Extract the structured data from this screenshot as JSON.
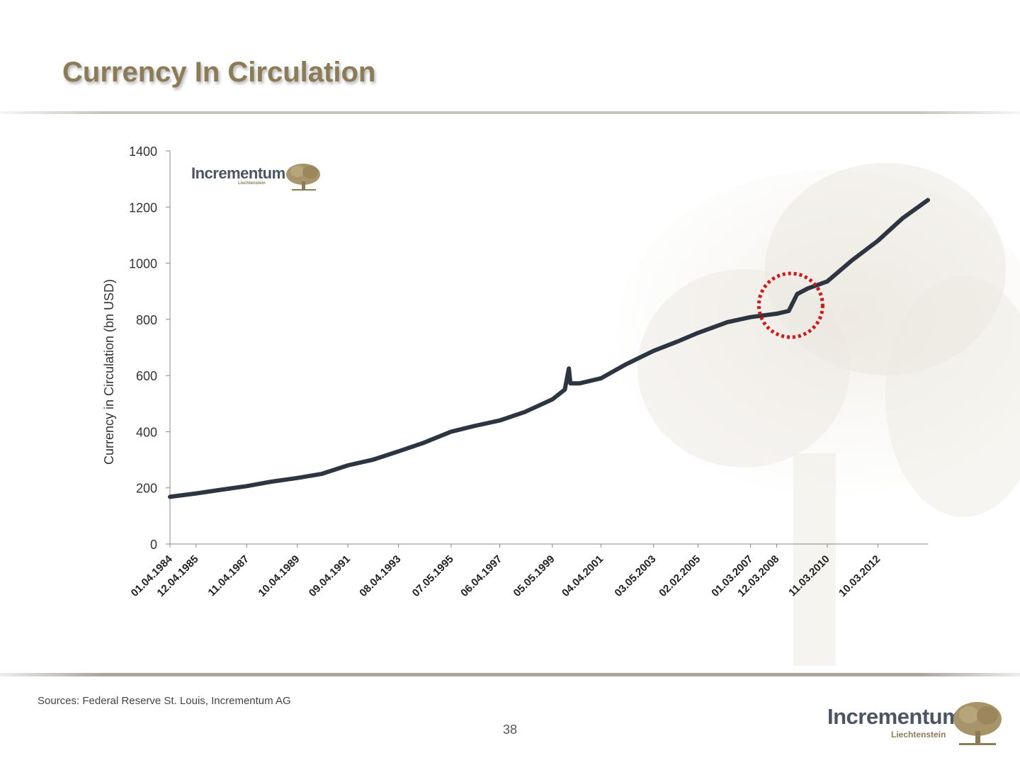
{
  "slide": {
    "title": "Currency In Circulation",
    "sources": "Sources: Federal Reserve St. Louis, Incrementum AG",
    "page_number": "38"
  },
  "brand": {
    "name": "Incrementum",
    "subtitle": "Liechtenstein",
    "icon": "tree-icon",
    "title_color": "#8b7b57",
    "logo_text_color": "#4b5563"
  },
  "chart_data": {
    "type": "line",
    "title": "",
    "xlabel": "",
    "ylabel": "Currency in Circulation (bn USD)",
    "ylim": [
      0,
      1400
    ],
    "yticks": [
      0,
      200,
      400,
      600,
      800,
      1000,
      1200,
      1400
    ],
    "xticks": [
      "01.04.1984",
      "12.04.1985",
      "11.04.1987",
      "10.04.1989",
      "09.04.1991",
      "08.04.1993",
      "07.05.1995",
      "06.04.1997",
      "05.05.1999",
      "04.04.2001",
      "03.05.2003",
      "02.02.2005",
      "01.03.2007",
      "12.03.2008",
      "11.03.2010",
      "10.03.2012"
    ],
    "xlim": [
      "1984-04-01",
      "2014-03-01"
    ],
    "grid": false,
    "line_color": "#2d3640",
    "series": [
      {
        "points": [
          [
            "1984-04-01",
            168
          ],
          [
            "1985-04-12",
            180
          ],
          [
            "1986-04-01",
            193
          ],
          [
            "1987-04-11",
            206
          ],
          [
            "1988-04-01",
            222
          ],
          [
            "1989-04-10",
            235
          ],
          [
            "1990-04-01",
            250
          ],
          [
            "1991-04-09",
            280
          ],
          [
            "1992-04-01",
            300
          ],
          [
            "1993-04-08",
            330
          ],
          [
            "1994-04-01",
            360
          ],
          [
            "1995-05-07",
            400
          ],
          [
            "1996-04-01",
            420
          ],
          [
            "1997-04-06",
            440
          ],
          [
            "1998-04-01",
            470
          ],
          [
            "1999-05-05",
            515
          ],
          [
            "1999-11-01",
            550
          ],
          [
            "1999-12-29",
            625
          ],
          [
            "2000-01-20",
            572
          ],
          [
            "2000-06-01",
            572
          ],
          [
            "2001-04-04",
            590
          ],
          [
            "2002-04-01",
            640
          ],
          [
            "2003-05-03",
            688
          ],
          [
            "2004-04-01",
            720
          ],
          [
            "2005-02-02",
            752
          ],
          [
            "2006-04-01",
            790
          ],
          [
            "2007-03-01",
            808
          ],
          [
            "2008-03-12",
            820
          ],
          [
            "2008-09-01",
            830
          ],
          [
            "2009-01-01",
            890
          ],
          [
            "2009-06-01",
            910
          ],
          [
            "2010-03-11",
            935
          ],
          [
            "2011-03-01",
            1010
          ],
          [
            "2012-03-10",
            1080
          ],
          [
            "2013-03-01",
            1160
          ],
          [
            "2014-03-01",
            1225
          ]
        ]
      }
    ],
    "annotation": {
      "type": "red-dotted-circle",
      "around_date": "2008-10-01",
      "around_value": 850,
      "color": "#cc1a1a"
    }
  }
}
